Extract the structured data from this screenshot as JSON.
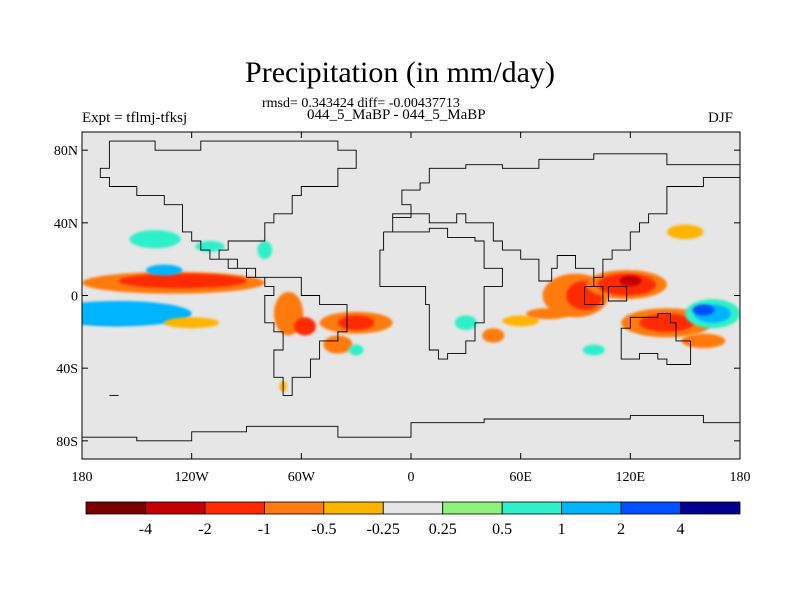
{
  "header": {
    "title": "Precipitation (in mm/day)",
    "stats": "rmsd= 0.343424 diff= -0.00437713",
    "case_label": "044_5_MaBP - 044_5_MaBP",
    "expt_label": "Expt = tflmj-tfksj",
    "season": "DJF"
  },
  "chart_data": {
    "type": "heatmap",
    "title": "Precipitation (in mm/day)",
    "subtitle": "rmsd= 0.343424 diff= -0.00437713",
    "xlabel": "",
    "ylabel": "",
    "xlim": [
      -180,
      180
    ],
    "ylim": [
      -90,
      90
    ],
    "x_ticks": [
      {
        "value": -180,
        "label": "180"
      },
      {
        "value": -120,
        "label": "120W"
      },
      {
        "value": -60,
        "label": "60W"
      },
      {
        "value": 0,
        "label": "0"
      },
      {
        "value": 60,
        "label": "60E"
      },
      {
        "value": 120,
        "label": "120E"
      },
      {
        "value": 180,
        "label": "180"
      }
    ],
    "y_ticks": [
      {
        "value": 80,
        "label": "80N"
      },
      {
        "value": 40,
        "label": "40N"
      },
      {
        "value": 0,
        "label": "0"
      },
      {
        "value": -40,
        "label": "40S"
      },
      {
        "value": -80,
        "label": "80S"
      }
    ],
    "colorbar": {
      "colors": [
        "#7b0000",
        "#c40000",
        "#ff2a00",
        "#ff7a10",
        "#ffb400",
        "#e6e6e6",
        "#8ff07a",
        "#2ff0c8",
        "#00b4ff",
        "#0050ff",
        "#000090"
      ],
      "labels": [
        "-4",
        "-2",
        "-1",
        "-0.5",
        "-0.25",
        "0.25",
        "0.5",
        "1",
        "2",
        "4"
      ]
    },
    "background_color": "#e6e6e6",
    "regions": [
      {
        "lon": -175,
        "lat": -11,
        "rlon": 8,
        "rlat": 3,
        "level": "-4"
      },
      {
        "lon": -165,
        "lat": -11,
        "rlon": 25,
        "rlat": 5,
        "level": "2"
      },
      {
        "lon": -160,
        "lat": -10,
        "rlon": 40,
        "rlat": 7,
        "level": "1"
      },
      {
        "lon": -130,
        "lat": 7,
        "rlon": 50,
        "rlat": 6,
        "level": "-0.5"
      },
      {
        "lon": -125,
        "lat": 8,
        "rlon": 35,
        "rlat": 4,
        "level": "-1"
      },
      {
        "lon": -135,
        "lat": 14,
        "rlon": 10,
        "rlat": 3,
        "level": "1"
      },
      {
        "lon": -140,
        "lat": 31,
        "rlon": 14,
        "rlat": 5,
        "level": "0.5"
      },
      {
        "lon": -110,
        "lat": 27,
        "rlon": 8,
        "rlat": 3,
        "level": "0.5"
      },
      {
        "lon": -80,
        "lat": 25,
        "rlon": 4,
        "rlat": 5,
        "level": "0.5"
      },
      {
        "lon": -120,
        "lat": -15,
        "rlon": 15,
        "rlat": 3,
        "level": "-0.25"
      },
      {
        "lon": -67,
        "lat": -10,
        "rlon": 8,
        "rlat": 12,
        "level": "-0.5"
      },
      {
        "lon": -58,
        "lat": -17,
        "rlon": 6,
        "rlat": 5,
        "level": "-1"
      },
      {
        "lon": -30,
        "lat": -15,
        "rlon": 20,
        "rlat": 6,
        "level": "-0.5"
      },
      {
        "lon": -30,
        "lat": -15,
        "rlon": 10,
        "rlat": 4,
        "level": "-1"
      },
      {
        "lon": -40,
        "lat": -27,
        "rlon": 8,
        "rlat": 5,
        "level": "-0.5"
      },
      {
        "lon": -30,
        "lat": -30,
        "rlon": 4,
        "rlat": 3,
        "level": "0.5"
      },
      {
        "lon": -70,
        "lat": -50,
        "rlon": 2,
        "rlat": 3,
        "level": "-0.25"
      },
      {
        "lon": 30,
        "lat": -15,
        "rlon": 6,
        "rlat": 4,
        "level": "0.5"
      },
      {
        "lon": 45,
        "lat": -22,
        "rlon": 6,
        "rlat": 4,
        "level": "-0.5"
      },
      {
        "lon": 60,
        "lat": -14,
        "rlon": 10,
        "rlat": 3,
        "level": "-0.25"
      },
      {
        "lon": 75,
        "lat": -10,
        "rlon": 12,
        "rlat": 3,
        "level": "-0.5"
      },
      {
        "lon": 90,
        "lat": 0,
        "rlon": 18,
        "rlat": 12,
        "level": "-0.5"
      },
      {
        "lon": 95,
        "lat": 0,
        "rlon": 10,
        "rlat": 8,
        "level": "-1"
      },
      {
        "lon": 118,
        "lat": 6,
        "rlon": 22,
        "rlat": 8,
        "level": "-0.5"
      },
      {
        "lon": 118,
        "lat": 6,
        "rlon": 16,
        "rlat": 6,
        "level": "-1"
      },
      {
        "lon": 120,
        "lat": 8,
        "rlon": 6,
        "rlat": 3,
        "level": "-2"
      },
      {
        "lon": 140,
        "lat": -15,
        "rlon": 25,
        "rlat": 8,
        "level": "-0.5"
      },
      {
        "lon": 140,
        "lat": -15,
        "rlon": 15,
        "rlat": 5,
        "level": "-1"
      },
      {
        "lon": 160,
        "lat": -25,
        "rlon": 12,
        "rlat": 4,
        "level": "-0.5"
      },
      {
        "lon": 165,
        "lat": -10,
        "rlon": 15,
        "rlat": 8,
        "level": "0.5"
      },
      {
        "lon": 165,
        "lat": -10,
        "rlon": 10,
        "rlat": 5,
        "level": "1"
      },
      {
        "lon": 160,
        "lat": -8,
        "rlon": 6,
        "rlat": 3,
        "level": "2"
      },
      {
        "lon": 150,
        "lat": 35,
        "rlon": 10,
        "rlat": 4,
        "level": "-0.25"
      },
      {
        "lon": 100,
        "lat": -30,
        "rlon": 6,
        "rlat": 3,
        "level": "0.5"
      }
    ],
    "coastlines": [
      [
        [
          -165,
          85
        ],
        [
          -140,
          85
        ],
        [
          -140,
          80
        ],
        [
          -115,
          80
        ],
        [
          -115,
          85
        ],
        [
          -60,
          85
        ],
        [
          -40,
          80
        ],
        [
          -30,
          70
        ],
        [
          -40,
          60
        ],
        [
          -50,
          60
        ],
        [
          -60,
          55
        ],
        [
          -65,
          45
        ],
        [
          -75,
          40
        ],
        [
          -80,
          30
        ],
        [
          -90,
          30
        ],
        [
          -100,
          25
        ],
        [
          -105,
          20
        ],
        [
          -95,
          15
        ],
        [
          -85,
          10
        ],
        [
          -80,
          5
        ],
        [
          -75,
          0
        ],
        [
          -80,
          -5
        ],
        [
          -80,
          -15
        ],
        [
          -75,
          -20
        ],
        [
          -70,
          -30
        ],
        [
          -75,
          -45
        ],
        [
          -70,
          -55
        ],
        [
          -65,
          -55
        ],
        [
          -65,
          -45
        ],
        [
          -55,
          -35
        ],
        [
          -50,
          -25
        ],
        [
          -40,
          -20
        ],
        [
          -35,
          -10
        ],
        [
          -35,
          -5
        ],
        [
          -50,
          0
        ],
        [
          -60,
          10
        ],
        [
          -70,
          10
        ],
        [
          -80,
          10
        ],
        [
          -90,
          15
        ],
        [
          -100,
          20
        ],
        [
          -110,
          25
        ],
        [
          -115,
          30
        ],
        [
          -120,
          35
        ],
        [
          -125,
          40
        ],
        [
          -125,
          50
        ],
        [
          -135,
          55
        ],
        [
          -150,
          60
        ],
        [
          -165,
          65
        ],
        [
          -170,
          70
        ],
        [
          -165,
          85
        ]
      ],
      [
        [
          -15,
          35
        ],
        [
          -5,
          35
        ],
        [
          10,
          37
        ],
        [
          20,
          32
        ],
        [
          30,
          32
        ],
        [
          35,
          30
        ],
        [
          40,
          15
        ],
        [
          50,
          12
        ],
        [
          50,
          5
        ],
        [
          40,
          -5
        ],
        [
          40,
          -15
        ],
        [
          35,
          -25
        ],
        [
          30,
          -32
        ],
        [
          20,
          -35
        ],
        [
          15,
          -30
        ],
        [
          10,
          -15
        ],
        [
          10,
          -5
        ],
        [
          8,
          5
        ],
        [
          0,
          5
        ],
        [
          -10,
          5
        ],
        [
          -17,
          15
        ],
        [
          -17,
          25
        ],
        [
          -15,
          35
        ]
      ],
      [
        [
          -10,
          35
        ],
        [
          -10,
          45
        ],
        [
          0,
          50
        ],
        [
          -5,
          58
        ],
        [
          5,
          62
        ],
        [
          10,
          70
        ],
        [
          30,
          72
        ],
        [
          50,
          70
        ],
        [
          70,
          75
        ],
        [
          100,
          78
        ],
        [
          140,
          72
        ],
        [
          180,
          70
        ],
        [
          180,
          65
        ],
        [
          160,
          60
        ],
        [
          140,
          55
        ],
        [
          140,
          45
        ],
        [
          130,
          40
        ],
        [
          125,
          35
        ],
        [
          120,
          25
        ],
        [
          110,
          20
        ],
        [
          105,
          10
        ],
        [
          100,
          5
        ],
        [
          100,
          15
        ],
        [
          95,
          15
        ],
        [
          90,
          22
        ],
        [
          80,
          15
        ],
        [
          77,
          8
        ],
        [
          70,
          20
        ],
        [
          60,
          25
        ],
        [
          55,
          25
        ],
        [
          50,
          30
        ],
        [
          45,
          40
        ],
        [
          40,
          40
        ],
        [
          30,
          45
        ],
        [
          25,
          40
        ],
        [
          20,
          40
        ],
        [
          10,
          45
        ],
        [
          0,
          43
        ],
        [
          -10,
          35
        ]
      ],
      [
        [
          115,
          -20
        ],
        [
          115,
          -35
        ],
        [
          125,
          -32
        ],
        [
          135,
          -35
        ],
        [
          140,
          -38
        ],
        [
          150,
          -38
        ],
        [
          153,
          -30
        ],
        [
          153,
          -25
        ],
        [
          145,
          -15
        ],
        [
          142,
          -10
        ],
        [
          135,
          -12
        ],
        [
          130,
          -12
        ],
        [
          120,
          -18
        ],
        [
          115,
          -20
        ]
      ],
      [
        [
          -180,
          -78
        ],
        [
          -150,
          -80
        ],
        [
          -120,
          -75
        ],
        [
          -90,
          -72
        ],
        [
          -60,
          -72
        ],
        [
          -40,
          -78
        ],
        [
          0,
          -70
        ],
        [
          40,
          -68
        ],
        [
          80,
          -68
        ],
        [
          120,
          -66
        ],
        [
          160,
          -70
        ],
        [
          180,
          -78
        ]
      ],
      [
        [
          95,
          5
        ],
        [
          105,
          -5
        ],
        [
          100,
          -5
        ],
        [
          95,
          5
        ]
      ],
      [
        [
          108,
          5
        ],
        [
          118,
          5
        ],
        [
          118,
          -3
        ],
        [
          110,
          -3
        ],
        [
          108,
          5
        ]
      ],
      [
        [
          -165,
          -55
        ],
        [
          -160,
          -55
        ]
      ]
    ]
  }
}
